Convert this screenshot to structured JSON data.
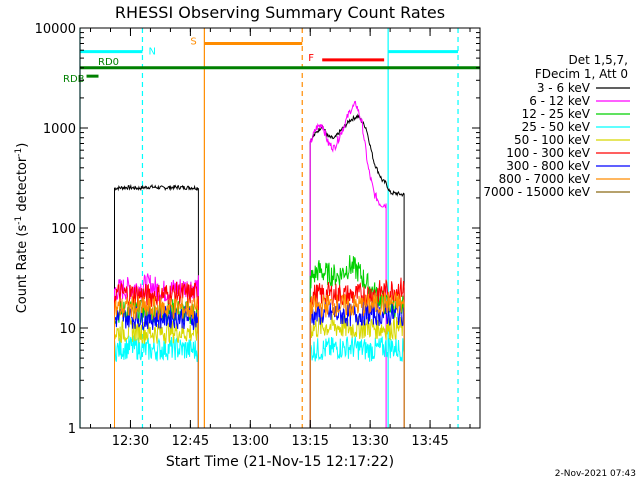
{
  "chart_data": {
    "type": "line",
    "title": "RHESSI Observing Summary Count Rates",
    "xlabel": "Start Time (21-Nov-15 12:17:22)",
    "ylabel_main": "Count Rate (s",
    "ylabel_sup1": "-1",
    "ylabel_mid": " detector",
    "ylabel_sup2": "-1",
    "ylabel_end": ")",
    "y_scale": "log",
    "ylim": [
      1,
      10000
    ],
    "xlim": [
      "12:17:22",
      "13:57:30"
    ],
    "x_ticks": [
      "12:30",
      "12:45",
      "13:00",
      "13:15",
      "13:30",
      "13:45"
    ],
    "y_ticks": [
      "1",
      "10",
      "100",
      "1000",
      "10000"
    ],
    "date_stamp": "2-Nov-2021 07:43",
    "legend": {
      "header": [
        "Det 1,5,7,",
        "FDecim 1, Att 0"
      ],
      "entries": [
        {
          "label": "3 - 6 keV",
          "color": "#000000"
        },
        {
          "label": "6 - 12 keV",
          "color": "#ff00ff"
        },
        {
          "label": "12 - 25 keV",
          "color": "#00d000"
        },
        {
          "label": "25 - 50 keV",
          "color": "#00ffff"
        },
        {
          "label": "50 - 100 keV",
          "color": "#d8d800"
        },
        {
          "label": "100 - 300 keV",
          "color": "#ff0000"
        },
        {
          "label": "300 - 800 keV",
          "color": "#0000ff"
        },
        {
          "label": "800 - 7000 keV",
          "color": "#ff8c00"
        },
        {
          "label": "7000 - 15000 keV",
          "color": "#8b6914"
        }
      ]
    },
    "flag_bars": [
      {
        "label": "N",
        "color": "#00ffff",
        "level": 5800,
        "segments": [
          [
            "12:17:22",
            "12:33:00"
          ],
          [
            "13:34:30",
            "13:52:00"
          ]
        ]
      },
      {
        "label": "S",
        "color": "#ff8c00",
        "level": 7000,
        "segments": [
          [
            "12:48:30",
            "13:13:00"
          ]
        ]
      },
      {
        "label": "F",
        "color": "#ff0000",
        "level": 4800,
        "segments": [
          [
            "13:18:00",
            "13:33:30"
          ]
        ]
      },
      {
        "label": "RD0",
        "color": "#008000",
        "level": 4000,
        "segments": [
          [
            "12:17:22",
            "13:57:30"
          ]
        ]
      },
      {
        "label": "RDB",
        "color": "#008000",
        "level": 3300,
        "segments": [
          [
            "12:19:00",
            "12:22:00"
          ]
        ]
      }
    ],
    "vertical_lines": [
      {
        "time": "12:17:22",
        "color": "#00ffff",
        "style": "solid"
      },
      {
        "time": "12:33:00",
        "color": "#00ffff",
        "style": "dashed"
      },
      {
        "time": "12:48:30",
        "color": "#ff8c00",
        "style": "solid"
      },
      {
        "time": "13:13:00",
        "color": "#ff8c00",
        "style": "dashed"
      },
      {
        "time": "13:34:30",
        "color": "#00ffff",
        "style": "solid"
      },
      {
        "time": "13:52:00",
        "color": "#00ffff",
        "style": "dashed"
      }
    ],
    "series": [
      {
        "name": "3 - 6 keV",
        "color": "#000000",
        "intervals": [
          [
            [
              "12:26:00",
              250
            ],
            [
              "12:29:00",
              255
            ],
            [
              "12:32:00",
              250
            ],
            [
              "12:35:00",
              258
            ],
            [
              "12:38:00",
              252
            ],
            [
              "12:41:00",
              256
            ],
            [
              "12:44:00",
              254
            ],
            [
              "12:47:00",
              252
            ]
          ],
          [
            [
              "13:15:00",
              750
            ],
            [
              "13:16:30",
              900
            ],
            [
              "13:18:00",
              1050
            ],
            [
              "13:19:30",
              820
            ],
            [
              "13:21:00",
              780
            ],
            [
              "13:23:00",
              980
            ],
            [
              "13:25:00",
              1200
            ],
            [
              "13:27:00",
              1320
            ],
            [
              "13:29:00",
              1000
            ],
            [
              "13:31:00",
              450
            ],
            [
              "13:33:00",
              300
            ],
            [
              "13:34:00",
              280
            ],
            [
              "13:35:00",
              225
            ],
            [
              "13:37:00",
              220
            ],
            [
              "13:38:30",
              215
            ]
          ]
        ]
      },
      {
        "name": "6 - 12 keV",
        "color": "#ff00ff",
        "intervals": [
          [
            [
              "12:26:00",
              24
            ],
            [
              "12:30:00",
              25
            ],
            [
              "12:35:00",
              27
            ],
            [
              "12:38:00",
              23
            ],
            [
              "12:42:00",
              25
            ],
            [
              "12:47:00",
              26
            ]
          ],
          [
            [
              "13:15:00",
              700
            ],
            [
              "13:16:30",
              1000
            ],
            [
              "13:18:00",
              1100
            ],
            [
              "13:19:30",
              700
            ],
            [
              "13:21:00",
              630
            ],
            [
              "13:23:00",
              950
            ],
            [
              "13:25:00",
              1500
            ],
            [
              "13:26:30",
              1750
            ],
            [
              "13:28:00",
              1100
            ],
            [
              "13:29:30",
              400
            ],
            [
              "13:31:00",
              220
            ],
            [
              "13:32:30",
              175
            ],
            [
              "13:34:00",
              170
            ]
          ]
        ]
      },
      {
        "name": "12 - 25 keV",
        "color": "#00d000",
        "intervals": [
          [
            [
              "12:26:00",
              14
            ],
            [
              "12:30:00",
              15
            ],
            [
              "12:35:00",
              14
            ],
            [
              "12:40:00",
              15
            ],
            [
              "12:47:00",
              14
            ]
          ],
          [
            [
              "13:15:00",
              30
            ],
            [
              "13:17:00",
              38
            ],
            [
              "13:19:00",
              35
            ],
            [
              "13:22:00",
              33
            ],
            [
              "13:25:00",
              42
            ],
            [
              "13:27:00",
              37
            ],
            [
              "13:30:00",
              25
            ],
            [
              "13:34:00",
              17
            ],
            [
              "13:38:30",
              16
            ]
          ]
        ]
      },
      {
        "name": "25 - 50 keV",
        "color": "#00ffff",
        "intervals": [
          [
            [
              "12:26:00",
              6
            ],
            [
              "12:30:00",
              6.5
            ],
            [
              "12:35:00",
              6
            ],
            [
              "12:40:00",
              6.3
            ],
            [
              "12:47:00",
              6
            ]
          ],
          [
            [
              "13:15:00",
              6
            ],
            [
              "13:20:00",
              6.2
            ],
            [
              "13:25:00",
              6.5
            ],
            [
              "13:30:00",
              6.0
            ],
            [
              "13:35:00",
              6.5
            ],
            [
              "13:38:30",
              6
            ]
          ]
        ]
      },
      {
        "name": "50 - 100 keV",
        "color": "#d8d800",
        "intervals": [
          [
            [
              "12:26:00",
              9
            ],
            [
              "12:30:00",
              9.5
            ],
            [
              "12:35:00",
              9
            ],
            [
              "12:40:00",
              9.3
            ],
            [
              "12:47:00",
              9
            ]
          ],
          [
            [
              "13:15:00",
              10
            ],
            [
              "13:20:00",
              10.5
            ],
            [
              "13:25:00",
              10
            ],
            [
              "13:30:00",
              10.2
            ],
            [
              "13:35:00",
              10
            ],
            [
              "13:38:30",
              10
            ]
          ]
        ]
      },
      {
        "name": "100 - 300 keV",
        "color": "#ff0000",
        "intervals": [
          [
            [
              "12:26:00",
              22
            ],
            [
              "12:30:00",
              22
            ],
            [
              "12:35:00",
              21
            ],
            [
              "12:40:00",
              22
            ],
            [
              "12:47:00",
              22
            ]
          ],
          [
            [
              "13:15:00",
              21
            ],
            [
              "13:20:00",
              22
            ],
            [
              "13:25:00",
              21
            ],
            [
              "13:30:00",
              22
            ],
            [
              "13:35:00",
              24
            ],
            [
              "13:38:30",
              25
            ]
          ]
        ]
      },
      {
        "name": "300 - 800 keV",
        "color": "#0000ff",
        "intervals": [
          [
            [
              "12:26:00",
              12.5
            ],
            [
              "12:30:00",
              13
            ],
            [
              "12:35:00",
              12.5
            ],
            [
              "12:40:00",
              13
            ],
            [
              "12:47:00",
              12.5
            ]
          ],
          [
            [
              "13:15:00",
              13.5
            ],
            [
              "13:20:00",
              14
            ],
            [
              "13:25:00",
              13.5
            ],
            [
              "13:30:00",
              14
            ],
            [
              "13:35:00",
              13.5
            ],
            [
              "13:38:30",
              14
            ]
          ]
        ]
      },
      {
        "name": "800 - 7000 keV",
        "color": "#ff8c00",
        "intervals": [
          [
            [
              "12:26:00",
              15.5
            ],
            [
              "12:30:00",
              16
            ],
            [
              "12:35:00",
              15.5
            ],
            [
              "12:40:00",
              16
            ],
            [
              "12:47:00",
              15.5
            ]
          ],
          [
            [
              "13:15:00",
              16
            ],
            [
              "13:20:00",
              17
            ],
            [
              "13:25:00",
              16.5
            ],
            [
              "13:30:00",
              17
            ],
            [
              "13:35:00",
              18
            ],
            [
              "13:38:30",
              17
            ]
          ]
        ]
      },
      {
        "name": "7000 - 15000 keV",
        "color": "#8b6914",
        "intervals": []
      }
    ]
  }
}
